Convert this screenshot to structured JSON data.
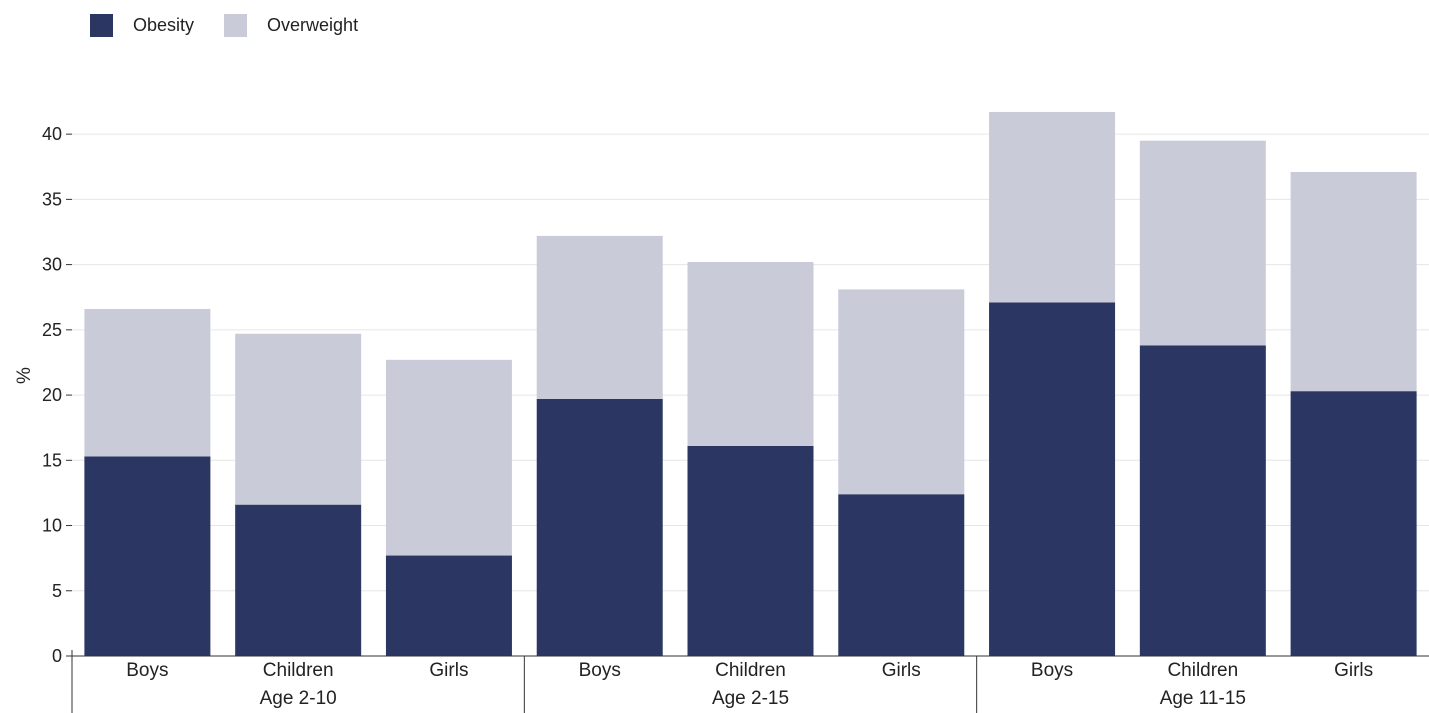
{
  "chart_data": {
    "type": "bar",
    "stacked": true,
    "title": "",
    "xlabel": "",
    "ylabel": "%",
    "ylim": [
      0,
      43
    ],
    "yticks": [
      0,
      5,
      10,
      15,
      20,
      25,
      30,
      35,
      40
    ],
    "grid": true,
    "legend_position": "top-left",
    "groups": [
      {
        "label": "Age 2-10",
        "categories": [
          "Boys",
          "Children",
          "Girls"
        ]
      },
      {
        "label": "Age 2-15",
        "categories": [
          "Boys",
          "Children",
          "Girls"
        ]
      },
      {
        "label": "Age 11-15",
        "categories": [
          "Boys",
          "Children",
          "Girls"
        ]
      }
    ],
    "categories": [
      "Boys",
      "Children",
      "Girls",
      "Boys",
      "Children",
      "Girls",
      "Boys",
      "Children",
      "Girls"
    ],
    "series": [
      {
        "name": "Obesity",
        "color": "#2b3663",
        "values": [
          15.3,
          11.6,
          7.7,
          19.7,
          16.1,
          12.4,
          27.1,
          23.8,
          20.3
        ]
      },
      {
        "name": "Overweight",
        "color": "#c9ccd8",
        "values": [
          11.3,
          13.1,
          15.0,
          12.5,
          14.1,
          15.7,
          14.6,
          15.7,
          16.8
        ]
      }
    ]
  }
}
